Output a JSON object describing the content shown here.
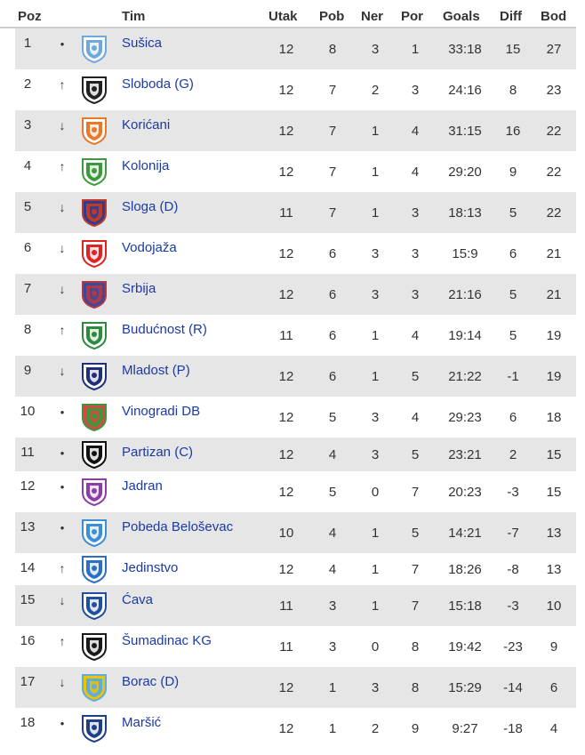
{
  "headers": {
    "poz": "Poz",
    "tim": "Tim",
    "utak": "Utak",
    "pob": "Pob",
    "ner": "Ner",
    "por": "Por",
    "goals": "Goals",
    "diff": "Diff",
    "bod": "Bod"
  },
  "colors": {
    "link": "#1a3aa6",
    "alt_row": "#e6e6e6",
    "text": "#333333"
  },
  "rows": [
    {
      "poz": "1",
      "move": "•",
      "move_icon": "dot-icon",
      "team": "Sušica",
      "utak": "12",
      "pob": "8",
      "ner": "3",
      "por": "1",
      "goals": "33:18",
      "diff": "15",
      "bod": "27",
      "logo": {
        "icon": "susica-crest-icon",
        "primary": "#6fa8dc",
        "secondary": "#ffffff"
      }
    },
    {
      "poz": "2",
      "move": "↑",
      "move_icon": "arrow-up-icon",
      "team": "Sloboda (G)",
      "utak": "12",
      "pob": "7",
      "ner": "2",
      "por": "3",
      "goals": "24:16",
      "diff": "8",
      "bod": "23",
      "logo": {
        "icon": "sloboda-crest-icon",
        "primary": "#222222",
        "secondary": "#ffffff"
      }
    },
    {
      "poz": "3",
      "move": "↓",
      "move_icon": "arrow-down-icon",
      "team": "Korićani",
      "utak": "12",
      "pob": "7",
      "ner": "1",
      "por": "4",
      "goals": "31:15",
      "diff": "16",
      "bod": "22",
      "logo": {
        "icon": "koricani-crest-icon",
        "primary": "#e8782a",
        "secondary": "#ffffff"
      }
    },
    {
      "poz": "4",
      "move": "↑",
      "move_icon": "arrow-up-icon",
      "team": "Kolonija",
      "utak": "12",
      "pob": "7",
      "ner": "1",
      "por": "4",
      "goals": "29:20",
      "diff": "9",
      "bod": "22",
      "logo": {
        "icon": "kolonija-crest-icon",
        "primary": "#3c9a3c",
        "secondary": "#ffffff"
      }
    },
    {
      "poz": "5",
      "move": "↓",
      "move_icon": "arrow-down-icon",
      "team": "Sloga (D)",
      "utak": "11",
      "pob": "7",
      "ner": "1",
      "por": "3",
      "goals": "18:13",
      "diff": "5",
      "bod": "22",
      "logo": {
        "icon": "sloga-crest-icon",
        "primary": "#c0392b",
        "secondary": "#2c3e91"
      }
    },
    {
      "poz": "6",
      "move": "↓",
      "move_icon": "arrow-down-icon",
      "team": "Vodojaža",
      "utak": "12",
      "pob": "6",
      "ner": "3",
      "por": "3",
      "goals": "15:9",
      "diff": "6",
      "bod": "21",
      "logo": {
        "icon": "vodojaza-crest-icon",
        "primary": "#e02424",
        "secondary": "#ffffff"
      }
    },
    {
      "poz": "7",
      "move": "↓",
      "move_icon": "arrow-down-icon",
      "team": "Srbija",
      "utak": "12",
      "pob": "6",
      "ner": "3",
      "por": "3",
      "goals": "21:16",
      "diff": "5",
      "bod": "21",
      "logo": {
        "icon": "srbija-crest-icon",
        "primary": "#b03a48",
        "secondary": "#3b4a9b"
      }
    },
    {
      "poz": "8",
      "move": "↑",
      "move_icon": "arrow-up-icon",
      "team": "Budućnost (R)",
      "utak": "11",
      "pob": "6",
      "ner": "1",
      "por": "4",
      "goals": "19:14",
      "diff": "5",
      "bod": "19",
      "logo": {
        "icon": "buducnost-crest-icon",
        "primary": "#2e8b3e",
        "secondary": "#ffffff"
      }
    },
    {
      "poz": "9",
      "move": "↓",
      "move_icon": "arrow-down-icon",
      "team": "Mladost (P)",
      "utak": "12",
      "pob": "6",
      "ner": "1",
      "por": "5",
      "goals": "21:22",
      "diff": "-1",
      "bod": "19",
      "logo": {
        "icon": "mladost-crest-icon",
        "primary": "#1f2f7a",
        "secondary": "#ffffff"
      }
    },
    {
      "poz": "10",
      "move": "•",
      "move_icon": "dot-icon",
      "team": "Vinogradi DB",
      "utak": "12",
      "pob": "5",
      "ner": "3",
      "por": "4",
      "goals": "29:23",
      "diff": "6",
      "bod": "18",
      "logo": {
        "icon": "vinogradi-crest-icon",
        "primary": "#3a9a3a",
        "secondary": "#d94848"
      }
    },
    {
      "poz": "11",
      "move": "•",
      "move_icon": "dot-icon",
      "team": "Partizan (C)",
      "utak": "12",
      "pob": "4",
      "ner": "3",
      "por": "5",
      "goals": "23:21",
      "diff": "2",
      "bod": "15",
      "logo": {
        "icon": "partizan-crest-icon",
        "primary": "#111111",
        "secondary": "#ffffff"
      }
    },
    {
      "poz": "12",
      "move": "•",
      "move_icon": "dot-icon",
      "team": "Jadran",
      "utak": "12",
      "pob": "5",
      "ner": "0",
      "por": "7",
      "goals": "20:23",
      "diff": "-3",
      "bod": "15",
      "logo": {
        "icon": "jadran-crest-icon",
        "primary": "#8a3fa8",
        "secondary": "#ffffff"
      }
    },
    {
      "poz": "13",
      "move": "•",
      "move_icon": "dot-icon",
      "team": "Pobeda Beloševac",
      "utak": "10",
      "pob": "4",
      "ner": "1",
      "por": "5",
      "goals": "14:21",
      "diff": "-7",
      "bod": "13",
      "logo": {
        "icon": "pobeda-crest-icon",
        "primary": "#3a8fd6",
        "secondary": "#ffffff"
      }
    },
    {
      "poz": "14",
      "move": "↑",
      "move_icon": "arrow-up-icon",
      "team": "Jedinstvo",
      "utak": "12",
      "pob": "4",
      "ner": "1",
      "por": "7",
      "goals": "18:26",
      "diff": "-8",
      "bod": "13",
      "logo": {
        "icon": "jedinstvo-crest-icon",
        "primary": "#2a6fc4",
        "secondary": "#ffffff"
      }
    },
    {
      "poz": "15",
      "move": "↓",
      "move_icon": "arrow-down-icon",
      "team": "Ćava",
      "utak": "11",
      "pob": "3",
      "ner": "1",
      "por": "7",
      "goals": "15:18",
      "diff": "-3",
      "bod": "10",
      "logo": {
        "icon": "cava-crest-icon",
        "primary": "#1f4fa0",
        "secondary": "#ffffff"
      }
    },
    {
      "poz": "16",
      "move": "↑",
      "move_icon": "arrow-up-icon",
      "team": "Šumadinac KG",
      "utak": "11",
      "pob": "3",
      "ner": "0",
      "por": "8",
      "goals": "19:42",
      "diff": "-23",
      "bod": "9",
      "logo": {
        "icon": "sumadinac-crest-icon",
        "primary": "#1a1a1a",
        "secondary": "#ffffff"
      }
    },
    {
      "poz": "17",
      "move": "↓",
      "move_icon": "arrow-down-icon",
      "team": "Borac (D)",
      "utak": "12",
      "pob": "1",
      "ner": "3",
      "por": "8",
      "goals": "15:29",
      "diff": "-14",
      "bod": "6",
      "logo": {
        "icon": "borac-crest-icon",
        "primary": "#5aaee0",
        "secondary": "#f2c200"
      }
    },
    {
      "poz": "18",
      "move": "•",
      "move_icon": "dot-icon",
      "team": "Maršić",
      "utak": "12",
      "pob": "1",
      "ner": "2",
      "por": "9",
      "goals": "9:27",
      "diff": "-18",
      "bod": "4",
      "logo": {
        "icon": "marsic-crest-icon",
        "primary": "#1f3f8a",
        "secondary": "#ffffff"
      }
    }
  ]
}
